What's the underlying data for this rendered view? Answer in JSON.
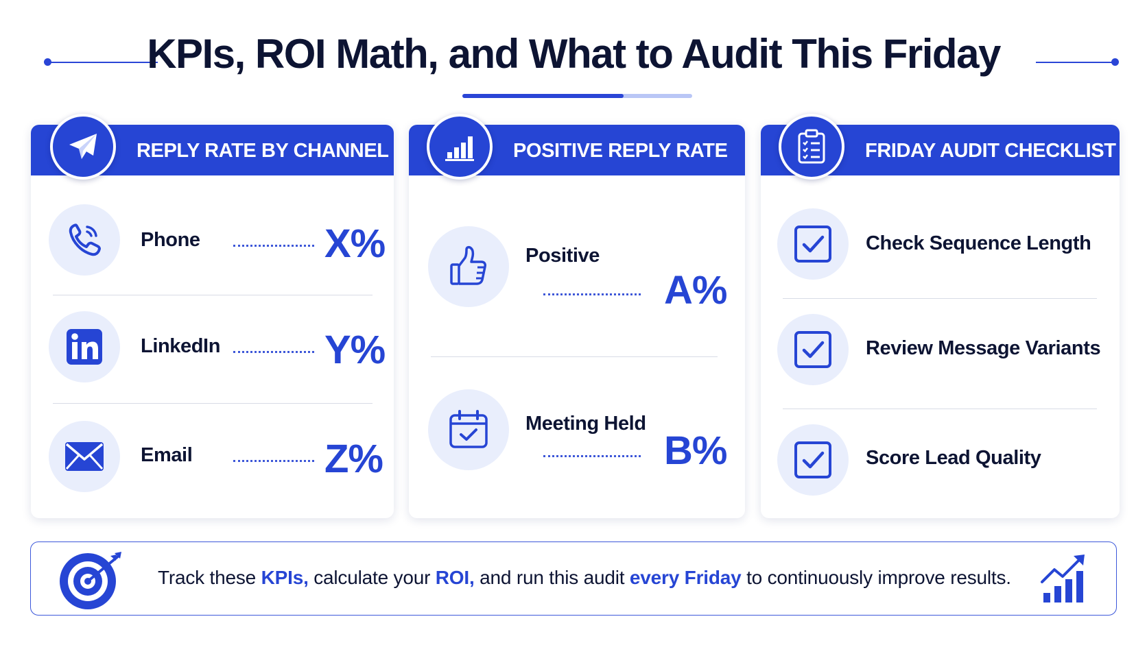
{
  "header": {
    "title": "KPIs, ROI Math, and What to Audit This Friday",
    "accent_color": "#2645d4"
  },
  "cards": {
    "reply_rate": {
      "title": "REPLY RATE BY CHANNEL",
      "icon": "paper-plane-icon",
      "rows": [
        {
          "label": "Phone",
          "value": "X%",
          "icon": "phone-icon"
        },
        {
          "label": "LinkedIn",
          "value": "Y%",
          "icon": "linkedin-icon"
        },
        {
          "label": "Email",
          "value": "Z%",
          "icon": "envelope-icon"
        }
      ]
    },
    "positive_reply": {
      "title": "POSITIVE REPLY RATE",
      "icon": "bar-chart-icon",
      "rows": [
        {
          "label": "Positive",
          "value": "A%",
          "icon": "thumbs-up-icon"
        },
        {
          "label": "Meeting Held",
          "value": "B%",
          "icon": "calendar-check-icon"
        }
      ]
    },
    "audit": {
      "title": "FRIDAY AUDIT CHECKLIST",
      "icon": "clipboard-checklist-icon",
      "items": [
        {
          "label": "Check Sequence Length",
          "icon": "checkbox-icon"
        },
        {
          "label": "Review Message Variants",
          "icon": "checkbox-icon"
        },
        {
          "label": "Score Lead Quality",
          "icon": "checkbox-icon"
        }
      ]
    }
  },
  "footer": {
    "icon": "target-icon",
    "trend_icon": "growth-chart-icon",
    "parts": [
      "Track these ",
      "KPIs,",
      " calculate your ",
      "ROI,",
      " and run this audit ",
      "every Friday",
      " to continuously improve results."
    ]
  }
}
